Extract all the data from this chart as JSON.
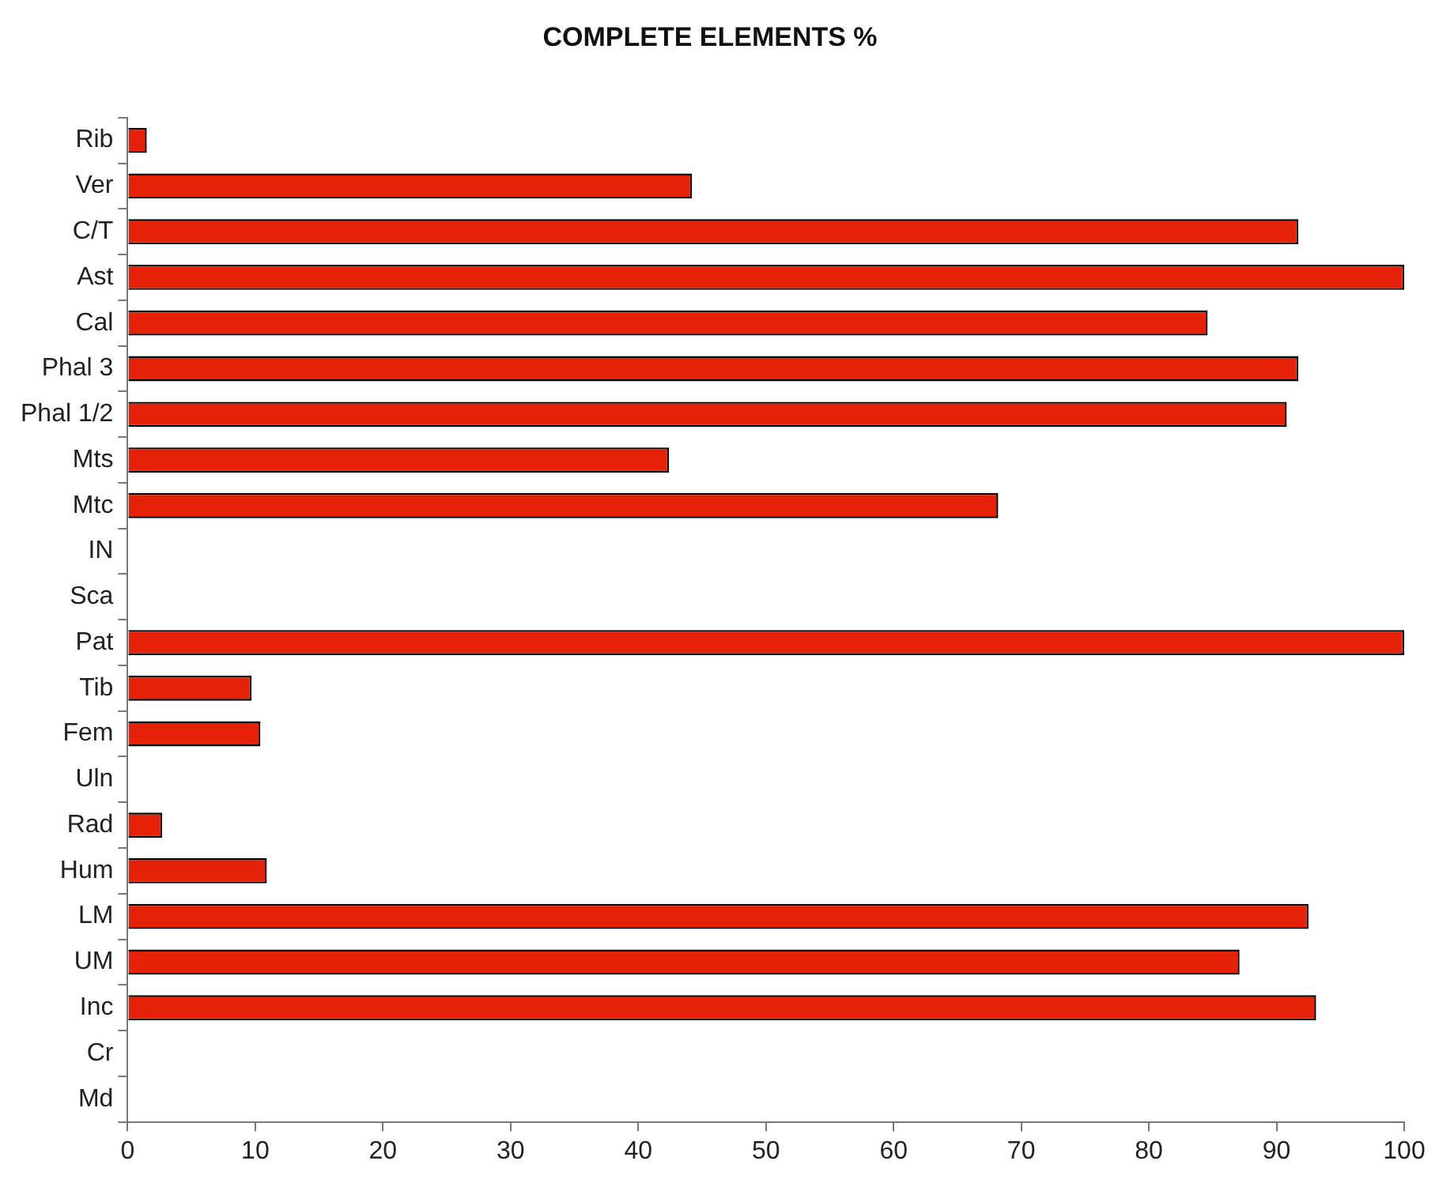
{
  "chart_data": {
    "type": "bar",
    "orientation": "horizontal",
    "title": "COMPLETE ELEMENTS %",
    "categories": [
      "Rib",
      "Ver",
      "C/T",
      "Ast",
      "Cal",
      "Phal 3",
      "Phal 1/2",
      "Mts",
      "Mtc",
      "IN",
      "Sca",
      "Pat",
      "Tib",
      "Fem",
      "Uln",
      "Rad",
      "Hum",
      "LM",
      "UM",
      "Inc",
      "Cr",
      "Md"
    ],
    "values": [
      1.5,
      44.2,
      91.7,
      100,
      84.6,
      91.7,
      90.8,
      42.4,
      68.2,
      0,
      0,
      100,
      9.7,
      10.4,
      0,
      2.7,
      10.9,
      92.5,
      87.1,
      93.1,
      0,
      0
    ],
    "color": "#e52207",
    "xlim": [
      0,
      100
    ],
    "xticks": [
      0,
      10,
      20,
      30,
      40,
      50,
      60,
      70,
      80,
      90,
      100
    ],
    "grid": false,
    "legend": false
  }
}
